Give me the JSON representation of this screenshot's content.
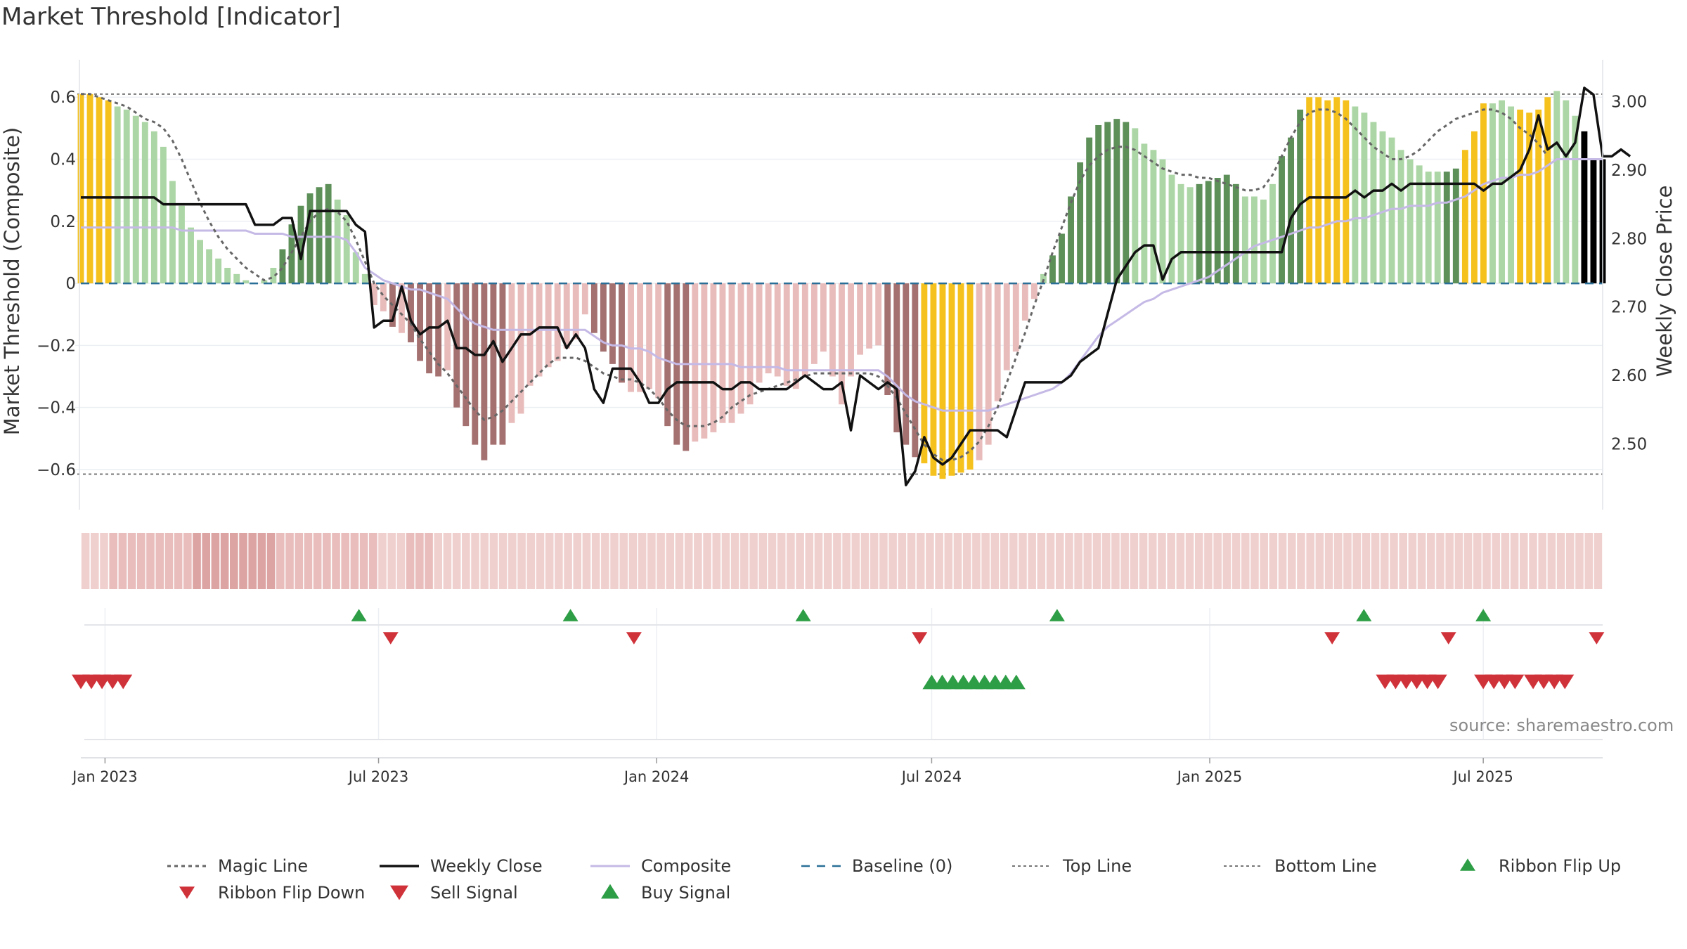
{
  "chart_data": {
    "title": "Market Threshold [Indicator]",
    "source": "source: sharemaestro.com",
    "type": "bar",
    "y_left": {
      "label": "Market Threshold (Composite)",
      "ylim": [
        -0.65,
        0.63
      ],
      "ticks": [
        0.6,
        0.4,
        0.2,
        0,
        -0.2,
        -0.4,
        -0.6
      ],
      "tick_labels": [
        "0.6",
        "0.4",
        "0.2",
        "0",
        "−0.2",
        "−0.4",
        "−0.6"
      ]
    },
    "y_right": {
      "label": "Weekly Close Price",
      "ylim": [
        2.44,
        3.02
      ],
      "ticks": [
        3.0,
        2.9,
        2.8,
        2.7,
        2.6,
        2.5
      ],
      "tick_labels": [
        "3.00",
        "2.90",
        "2.80",
        "2.70",
        "2.60",
        "2.50"
      ]
    },
    "x_axis": {
      "ticks": [
        "2023-01-01",
        "2023-07-01",
        "2024-01-01",
        "2024-07-01",
        "2025-01-01",
        "2025-07-01"
      ],
      "tick_labels": [
        "Jan 2023",
        "Jul 2023",
        "Jan 2024",
        "Jul 2024",
        "Jan 2025",
        "Jul 2025"
      ],
      "start": "2022-12-16",
      "end": "2025-09-18"
    },
    "reference_lines": {
      "top": 0.61,
      "bottom": -0.615,
      "baseline": 0
    },
    "composite_bars": [
      0.61,
      0.61,
      0.6,
      0.59,
      0.57,
      0.56,
      0.54,
      0.52,
      0.49,
      0.44,
      0.33,
      0.25,
      0.18,
      0.14,
      0.11,
      0.08,
      0.05,
      0.03,
      0.01,
      0.0,
      0.01,
      0.05,
      0.11,
      0.19,
      0.25,
      0.29,
      0.31,
      0.32,
      0.27,
      0.22,
      0.1,
      0.03,
      -0.07,
      -0.09,
      -0.14,
      -0.16,
      -0.19,
      -0.25,
      -0.29,
      -0.3,
      -0.28,
      -0.4,
      -0.46,
      -0.52,
      -0.57,
      -0.52,
      -0.52,
      -0.45,
      -0.42,
      -0.33,
      -0.3,
      -0.27,
      -0.25,
      -0.21,
      -0.18,
      -0.1,
      -0.16,
      -0.22,
      -0.26,
      -0.32,
      -0.35,
      -0.35,
      -0.34,
      -0.37,
      -0.46,
      -0.52,
      -0.54,
      -0.51,
      -0.5,
      -0.48,
      -0.45,
      -0.45,
      -0.42,
      -0.39,
      -0.32,
      -0.29,
      -0.3,
      -0.33,
      -0.34,
      -0.3,
      -0.26,
      -0.22,
      -0.3,
      -0.39,
      -0.3,
      -0.23,
      -0.21,
      -0.2,
      -0.36,
      -0.48,
      -0.52,
      -0.56,
      -0.58,
      -0.62,
      -0.63,
      -0.62,
      -0.61,
      -0.6,
      -0.57,
      -0.52,
      -0.38,
      -0.28,
      -0.22,
      -0.12,
      -0.05,
      0.03,
      0.09,
      0.16,
      0.28,
      0.39,
      0.47,
      0.51,
      0.52,
      0.53,
      0.52,
      0.5,
      0.45,
      0.43,
      0.4,
      0.35,
      0.32,
      0.31,
      0.32,
      0.33,
      0.34,
      0.35,
      0.32,
      0.28,
      0.28,
      0.27,
      0.32,
      0.41,
      0.47,
      0.56,
      0.6,
      0.6,
      0.59,
      0.6,
      0.59,
      0.57,
      0.55,
      0.52,
      0.49,
      0.47,
      0.43,
      0.4,
      0.38,
      0.36,
      0.36,
      0.36,
      0.37,
      0.43,
      0.49,
      0.58,
      0.58,
      0.59,
      0.57,
      0.56,
      0.55,
      0.56,
      0.6,
      0.62,
      0.59,
      0.54,
      0.49,
      0.4,
      0.4
    ],
    "composite_bar_colors": [
      "#f5c11d",
      "#f5c11d",
      "#f5c11d",
      "#f5c11d",
      "#acd6a5",
      "#acd6a5",
      "#acd6a5",
      "#acd6a5",
      "#acd6a5",
      "#acd6a5",
      "#acd6a5",
      "#acd6a5",
      "#acd6a5",
      "#acd6a5",
      "#acd6a5",
      "#acd6a5",
      "#acd6a5",
      "#acd6a5",
      "#acd6a5",
      "#acd6a5",
      "#acd6a5",
      "#acd6a5",
      "#5d8f59",
      "#5d8f59",
      "#5d8f59",
      "#5d8f59",
      "#5d8f59",
      "#5d8f59",
      "#acd6a5",
      "#acd6a5",
      "#acd6a5",
      "#acd6a5",
      "#e9bcbc",
      "#e9bcbc",
      "#a47070",
      "#e9bcbc",
      "#a47070",
      "#a47070",
      "#a47070",
      "#a47070",
      "#e9bcbc",
      "#a47070",
      "#a47070",
      "#a47070",
      "#a47070",
      "#a47070",
      "#a47070",
      "#e9bcbc",
      "#e9bcbc",
      "#e9bcbc",
      "#e9bcbc",
      "#e9bcbc",
      "#e9bcbc",
      "#e9bcbc",
      "#e9bcbc",
      "#e9bcbc",
      "#a47070",
      "#a47070",
      "#a47070",
      "#a47070",
      "#e9bcbc",
      "#e9bcbc",
      "#e9bcbc",
      "#e9bcbc",
      "#a47070",
      "#a47070",
      "#a47070",
      "#e9bcbc",
      "#e9bcbc",
      "#e9bcbc",
      "#e9bcbc",
      "#e9bcbc",
      "#e9bcbc",
      "#e9bcbc",
      "#e9bcbc",
      "#e9bcbc",
      "#e9bcbc",
      "#e9bcbc",
      "#e9bcbc",
      "#e9bcbc",
      "#e9bcbc",
      "#e9bcbc",
      "#e9bcbc",
      "#e9bcbc",
      "#e9bcbc",
      "#e9bcbc",
      "#e9bcbc",
      "#e9bcbc",
      "#a47070",
      "#a47070",
      "#a47070",
      "#a47070",
      "#f5c11d",
      "#f5c11d",
      "#f5c11d",
      "#f5c11d",
      "#f5c11d",
      "#f5c11d",
      "#e9bcbc",
      "#e9bcbc",
      "#e9bcbc",
      "#e9bcbc",
      "#e9bcbc",
      "#e9bcbc",
      "#e9bcbc",
      "#acd6a5",
      "#5d8f59",
      "#5d8f59",
      "#5d8f59",
      "#5d8f59",
      "#5d8f59",
      "#5d8f59",
      "#5d8f59",
      "#5d8f59",
      "#5d8f59",
      "#acd6a5",
      "#acd6a5",
      "#acd6a5",
      "#acd6a5",
      "#acd6a5",
      "#acd6a5",
      "#acd6a5",
      "#5d8f59",
      "#5d8f59",
      "#5d8f59",
      "#5d8f59",
      "#5d8f59",
      "#acd6a5",
      "#acd6a5",
      "#acd6a5",
      "#acd6a5",
      "#5d8f59",
      "#5d8f59",
      "#5d8f59",
      "#f5c11d",
      "#f5c11d",
      "#f5c11d",
      "#f5c11d",
      "#f5c11d",
      "#acd6a5",
      "#acd6a5",
      "#acd6a5",
      "#acd6a5",
      "#acd6a5",
      "#acd6a5",
      "#acd6a5",
      "#acd6a5",
      "#acd6a5",
      "#acd6a5",
      "#5d8f59",
      "#5d8f59",
      "#f5c11d",
      "#f5c11d",
      "#f5c11d",
      "#acd6a5",
      "#acd6a5",
      "#acd6a5",
      "#f5c11d",
      "#f5c11d",
      "#f5c11d",
      "#f5c11d",
      "#acd6a5",
      "#acd6a5",
      "#acd6a5"
    ],
    "series": [
      {
        "name": "Magic Line",
        "values": [
          0.61,
          0.61,
          0.6,
          0.59,
          0.58,
          0.57,
          0.55,
          0.53,
          0.52,
          0.5,
          0.46,
          0.4,
          0.33,
          0.26,
          0.2,
          0.15,
          0.11,
          0.08,
          0.05,
          0.03,
          0.01,
          0.02,
          0.05,
          0.1,
          0.15,
          0.2,
          0.23,
          0.24,
          0.23,
          0.2,
          0.14,
          0.07,
          0.0,
          -0.04,
          -0.07,
          -0.1,
          -0.13,
          -0.18,
          -0.22,
          -0.26,
          -0.29,
          -0.33,
          -0.37,
          -0.41,
          -0.44,
          -0.43,
          -0.41,
          -0.38,
          -0.35,
          -0.32,
          -0.29,
          -0.26,
          -0.24,
          -0.24,
          -0.24,
          -0.25,
          -0.27,
          -0.29,
          -0.3,
          -0.31,
          -0.31,
          -0.32,
          -0.34,
          -0.37,
          -0.41,
          -0.44,
          -0.46,
          -0.46,
          -0.46,
          -0.45,
          -0.43,
          -0.4,
          -0.38,
          -0.36,
          -0.35,
          -0.34,
          -0.33,
          -0.32,
          -0.31,
          -0.3,
          -0.29,
          -0.29,
          -0.29,
          -0.29,
          -0.29,
          -0.29,
          -0.29,
          -0.3,
          -0.33,
          -0.37,
          -0.42,
          -0.47,
          -0.52,
          -0.55,
          -0.57,
          -0.57,
          -0.56,
          -0.54,
          -0.51,
          -0.46,
          -0.4,
          -0.32,
          -0.24,
          -0.16,
          -0.07,
          0.01,
          0.1,
          0.18,
          0.26,
          0.33,
          0.38,
          0.41,
          0.43,
          0.44,
          0.44,
          0.43,
          0.41,
          0.39,
          0.37,
          0.36,
          0.35,
          0.35,
          0.34,
          0.34,
          0.33,
          0.32,
          0.31,
          0.3,
          0.3,
          0.31,
          0.35,
          0.41,
          0.47,
          0.52,
          0.55,
          0.56,
          0.56,
          0.55,
          0.53,
          0.5,
          0.47,
          0.44,
          0.42,
          0.4,
          0.4,
          0.41,
          0.43,
          0.46,
          0.49,
          0.51,
          0.53,
          0.54,
          0.55,
          0.56,
          0.56,
          0.55,
          0.53,
          0.5,
          0.48,
          0.45,
          0.41
        ]
      },
      {
        "name": "Composite",
        "values": [
          0.18,
          0.18,
          0.18,
          0.18,
          0.18,
          0.18,
          0.18,
          0.18,
          0.18,
          0.18,
          0.18,
          0.17,
          0.17,
          0.17,
          0.17,
          0.17,
          0.17,
          0.17,
          0.17,
          0.16,
          0.16,
          0.16,
          0.16,
          0.15,
          0.15,
          0.15,
          0.15,
          0.15,
          0.15,
          0.14,
          0.1,
          0.05,
          0.03,
          0.01,
          0.0,
          -0.01,
          -0.02,
          -0.02,
          -0.03,
          -0.04,
          -0.05,
          -0.08,
          -0.11,
          -0.13,
          -0.14,
          -0.15,
          -0.15,
          -0.15,
          -0.15,
          -0.15,
          -0.15,
          -0.15,
          -0.15,
          -0.15,
          -0.15,
          -0.15,
          -0.17,
          -0.19,
          -0.2,
          -0.2,
          -0.21,
          -0.21,
          -0.22,
          -0.24,
          -0.25,
          -0.26,
          -0.26,
          -0.26,
          -0.26,
          -0.26,
          -0.26,
          -0.26,
          -0.27,
          -0.27,
          -0.27,
          -0.27,
          -0.27,
          -0.28,
          -0.28,
          -0.28,
          -0.28,
          -0.28,
          -0.28,
          -0.28,
          -0.28,
          -0.28,
          -0.28,
          -0.28,
          -0.3,
          -0.33,
          -0.36,
          -0.38,
          -0.39,
          -0.4,
          -0.41,
          -0.41,
          -0.41,
          -0.41,
          -0.41,
          -0.41,
          -0.4,
          -0.39,
          -0.38,
          -0.37,
          -0.36,
          -0.35,
          -0.34,
          -0.32,
          -0.29,
          -0.25,
          -0.21,
          -0.17,
          -0.14,
          -0.12,
          -0.1,
          -0.08,
          -0.06,
          -0.05,
          -0.03,
          -0.02,
          -0.01,
          0.0,
          0.01,
          0.02,
          0.04,
          0.06,
          0.08,
          0.1,
          0.12,
          0.13,
          0.14,
          0.15,
          0.16,
          0.17,
          0.18,
          0.18,
          0.19,
          0.2,
          0.2,
          0.21,
          0.21,
          0.22,
          0.23,
          0.24,
          0.24,
          0.25,
          0.25,
          0.25,
          0.26,
          0.26,
          0.27,
          0.28,
          0.3,
          0.32,
          0.33,
          0.34,
          0.34,
          0.35,
          0.35,
          0.36,
          0.38,
          0.4,
          0.4,
          0.4,
          0.4,
          0.4,
          0.4
        ]
      },
      {
        "name": "Weekly Close",
        "axis": "right",
        "values": [
          2.86,
          2.86,
          2.86,
          2.86,
          2.86,
          2.86,
          2.86,
          2.86,
          2.86,
          2.85,
          2.85,
          2.85,
          2.85,
          2.85,
          2.85,
          2.85,
          2.85,
          2.85,
          2.85,
          2.82,
          2.82,
          2.82,
          2.83,
          2.83,
          2.77,
          2.84,
          2.84,
          2.84,
          2.84,
          2.84,
          2.82,
          2.81,
          2.67,
          2.68,
          2.68,
          2.73,
          2.68,
          2.66,
          2.67,
          2.67,
          2.68,
          2.64,
          2.64,
          2.63,
          2.63,
          2.65,
          2.62,
          2.64,
          2.66,
          2.66,
          2.67,
          2.67,
          2.67,
          2.64,
          2.66,
          2.64,
          2.58,
          2.56,
          2.61,
          2.61,
          2.61,
          2.59,
          2.56,
          2.56,
          2.58,
          2.59,
          2.59,
          2.59,
          2.59,
          2.59,
          2.58,
          2.58,
          2.59,
          2.59,
          2.58,
          2.58,
          2.58,
          2.58,
          2.59,
          2.6,
          2.59,
          2.58,
          2.58,
          2.59,
          2.52,
          2.6,
          2.59,
          2.58,
          2.59,
          2.58,
          2.44,
          2.46,
          2.51,
          2.48,
          2.47,
          2.48,
          2.5,
          2.52,
          2.52,
          2.52,
          2.52,
          2.51,
          2.55,
          2.59,
          2.59,
          2.59,
          2.59,
          2.59,
          2.6,
          2.62,
          2.63,
          2.64,
          2.69,
          2.74,
          2.76,
          2.78,
          2.79,
          2.79,
          2.74,
          2.77,
          2.78,
          2.78,
          2.78,
          2.78,
          2.78,
          2.78,
          2.78,
          2.78,
          2.78,
          2.78,
          2.78,
          2.78,
          2.83,
          2.85,
          2.86,
          2.86,
          2.86,
          2.86,
          2.86,
          2.87,
          2.86,
          2.87,
          2.87,
          2.88,
          2.87,
          2.88,
          2.88,
          2.88,
          2.88,
          2.88,
          2.88,
          2.88,
          2.88,
          2.87,
          2.88,
          2.88,
          2.89,
          2.9,
          2.93,
          2.98,
          2.93,
          2.94,
          2.92,
          2.94,
          3.02,
          3.01,
          2.92,
          2.92,
          2.93,
          2.92
        ]
      },
      {
        "name": "Baseline (0)"
      },
      {
        "name": "Top Line"
      },
      {
        "name": "Bottom Line"
      }
    ],
    "ribbon_colors": [
      "#f0d0cf",
      "#f0d0cf",
      "#f0d0cf",
      "#e8bdbc",
      "#e8bdbc",
      "#e8bdbc",
      "#e8bdbc",
      "#e8bdbc",
      "#e8bdbc",
      "#e8bdbc",
      "#e8bdbc",
      "#e8bdbc",
      "#dca4a3",
      "#dca4a3",
      "#dca4a3",
      "#dca4a3",
      "#dca4a3",
      "#dca4a3",
      "#dca4a3",
      "#dca4a3",
      "#dca4a3",
      "#e8bdbc",
      "#e8bdbc",
      "#e8bdbc",
      "#e8bdbc",
      "#e8bdbc",
      "#e8bdbc",
      "#e8bdbc",
      "#e8bdbc",
      "#e8bdbc",
      "#e8bdbc",
      "#e8bdbc",
      "#f0d0cf",
      "#f0d0cf",
      "#f0d0cf",
      "#e8bdbc",
      "#e8bdbc",
      "#e8bdbc",
      "#f0d0cf",
      "#f0d0cf",
      "#f0d0cf",
      "#f0d0cf",
      "#f0d0cf",
      "#f0d0cf",
      "#f0d0cf",
      "#f0d0cf",
      "#f0d0cf",
      "#f0d0cf",
      "#f0d0cf",
      "#f0d0cf",
      "#f0d0cf",
      "#f0d0cf",
      "#f0d0cf",
      "#f0d0cf",
      "#f0d0cf",
      "#f0d0cf",
      "#f0d0cf",
      "#f0d0cf",
      "#f0d0cf",
      "#f0d0cf",
      "#f0d0cf",
      "#f0d0cf",
      "#f0d0cf",
      "#f0d0cf",
      "#f0d0cf",
      "#f0d0cf",
      "#f0d0cf",
      "#f0d0cf",
      "#f0d0cf",
      "#f0d0cf",
      "#f0d0cf",
      "#f0d0cf",
      "#f0d0cf",
      "#f0d0cf",
      "#f0d0cf",
      "#f0d0cf",
      "#f0d0cf",
      "#f0d0cf",
      "#f0d0cf",
      "#f0d0cf",
      "#f0d0cf",
      "#f0d0cf",
      "#f0d0cf",
      "#f0d0cf",
      "#f0d0cf",
      "#f0d0cf",
      "#f0d0cf",
      "#f0d0cf",
      "#f0d0cf",
      "#f0d0cf",
      "#f0d0cf",
      "#f0d0cf",
      "#f0d0cf",
      "#f0d0cf",
      "#f0d0cf",
      "#f0d0cf",
      "#f0d0cf",
      "#f0d0cf",
      "#f0d0cf",
      "#f0d0cf",
      "#f0d0cf",
      "#f0d0cf",
      "#f0d0cf",
      "#f0d0cf",
      "#f0d0cf",
      "#f0d0cf",
      "#f0d0cf",
      "#f0d0cf",
      "#f0d0cf",
      "#f0d0cf",
      "#f0d0cf",
      "#f0d0cf",
      "#f0d0cf",
      "#f0d0cf",
      "#f0d0cf",
      "#f0d0cf",
      "#f0d0cf",
      "#f0d0cf",
      "#f0d0cf",
      "#f0d0cf",
      "#f0d0cf",
      "#f0d0cf",
      "#f0d0cf",
      "#f0d0cf",
      "#f0d0cf",
      "#f0d0cf",
      "#f0d0cf",
      "#f0d0cf",
      "#f0d0cf",
      "#f0d0cf",
      "#f0d0cf",
      "#f0d0cf",
      "#f0d0cf",
      "#f0d0cf",
      "#f0d0cf",
      "#f0d0cf",
      "#f0d0cf",
      "#f0d0cf",
      "#f0d0cf",
      "#f0d0cf",
      "#f0d0cf",
      "#f0d0cf",
      "#f0d0cf",
      "#f0d0cf",
      "#f0d0cf",
      "#f0d0cf",
      "#f0d0cf",
      "#f0d0cf",
      "#f0d0cf",
      "#f0d0cf",
      "#f0d0cf",
      "#f0d0cf",
      "#f0d0cf",
      "#f0d0cf",
      "#f0d0cf",
      "#f0d0cf",
      "#f0d0cf",
      "#f0d0cf",
      "#f0d0cf",
      "#f0d0cf",
      "#f0d0cf",
      "#f0d0cf",
      "#f0d0cf",
      "#f0d0cf"
    ],
    "ribbon_flips": {
      "up": [
        "2023-06-18",
        "2023-11-05",
        "2024-04-07",
        "2024-09-22",
        "2025-04-13",
        "2025-07-01"
      ],
      "down": [
        "2023-07-09",
        "2023-12-17",
        "2024-06-23",
        "2025-03-23",
        "2025-06-08",
        "2025-09-14"
      ]
    },
    "buy_signals": [
      "2024-07-01",
      "2024-07-08",
      "2024-07-15",
      "2024-07-22",
      "2024-07-29",
      "2024-08-05",
      "2024-08-12",
      "2024-08-19",
      "2024-08-26"
    ],
    "sell_signals": [
      "2022-12-16",
      "2022-12-23",
      "2022-12-30",
      "2023-01-06",
      "2023-01-13",
      "2025-04-27",
      "2025-05-04",
      "2025-05-11",
      "2025-05-18",
      "2025-05-25",
      "2025-06-01",
      "2025-07-01",
      "2025-07-08",
      "2025-07-15",
      "2025-07-22",
      "2025-08-03",
      "2025-08-10",
      "2025-08-17",
      "2025-08-24"
    ],
    "legend": [
      "Magic Line",
      "Weekly Close",
      "Composite",
      "Baseline (0)",
      "Top Line",
      "Bottom Line",
      "Ribbon Flip Up",
      "Ribbon Flip Down",
      "Sell Signal",
      "Buy Signal"
    ],
    "colors": {
      "magic": "#666666",
      "close": "#111111",
      "composite": "#c5b9e6",
      "baseline": "#2a6f97",
      "ref": "#777777",
      "up": "#2e9e46",
      "down": "#d0323a",
      "yellow": "#f5c11d",
      "green_dark": "#5d8f59",
      "green_light": "#acd6a5",
      "red_dark": "#a47070",
      "red_light": "#e9bcbc"
    }
  }
}
